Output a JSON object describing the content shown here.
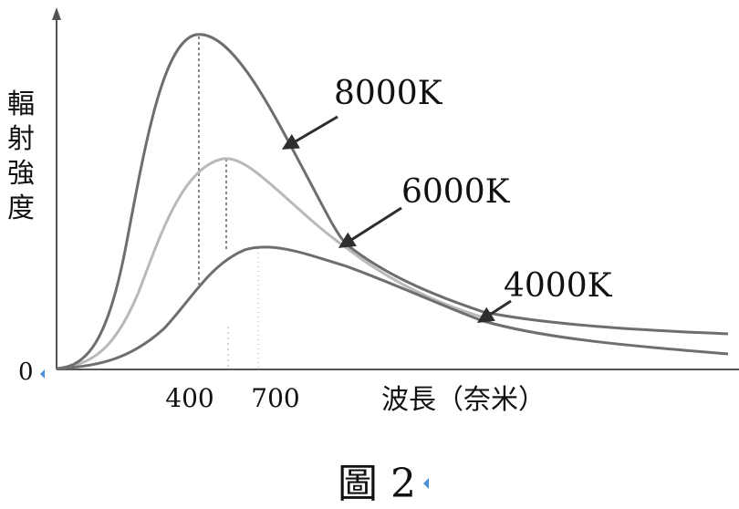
{
  "chart_data": {
    "type": "line",
    "ylabel": "輻射強度",
    "y_origin_label": "0",
    "xlabel": "波長（奈米）",
    "x_ticks": [
      "400",
      "700"
    ],
    "caption": "圖 2",
    "grid": false,
    "series": [
      {
        "name": "8000K",
        "peak_x": 400
      },
      {
        "name": "6000K",
        "peak_x": 500
      },
      {
        "name": "4000K",
        "peak_x": 700
      }
    ],
    "colors": {
      "axis": "#555555",
      "curve_dark": "#6e6e6e",
      "curve_light": "#b9b9b9",
      "marker": "#4a90d9"
    }
  }
}
